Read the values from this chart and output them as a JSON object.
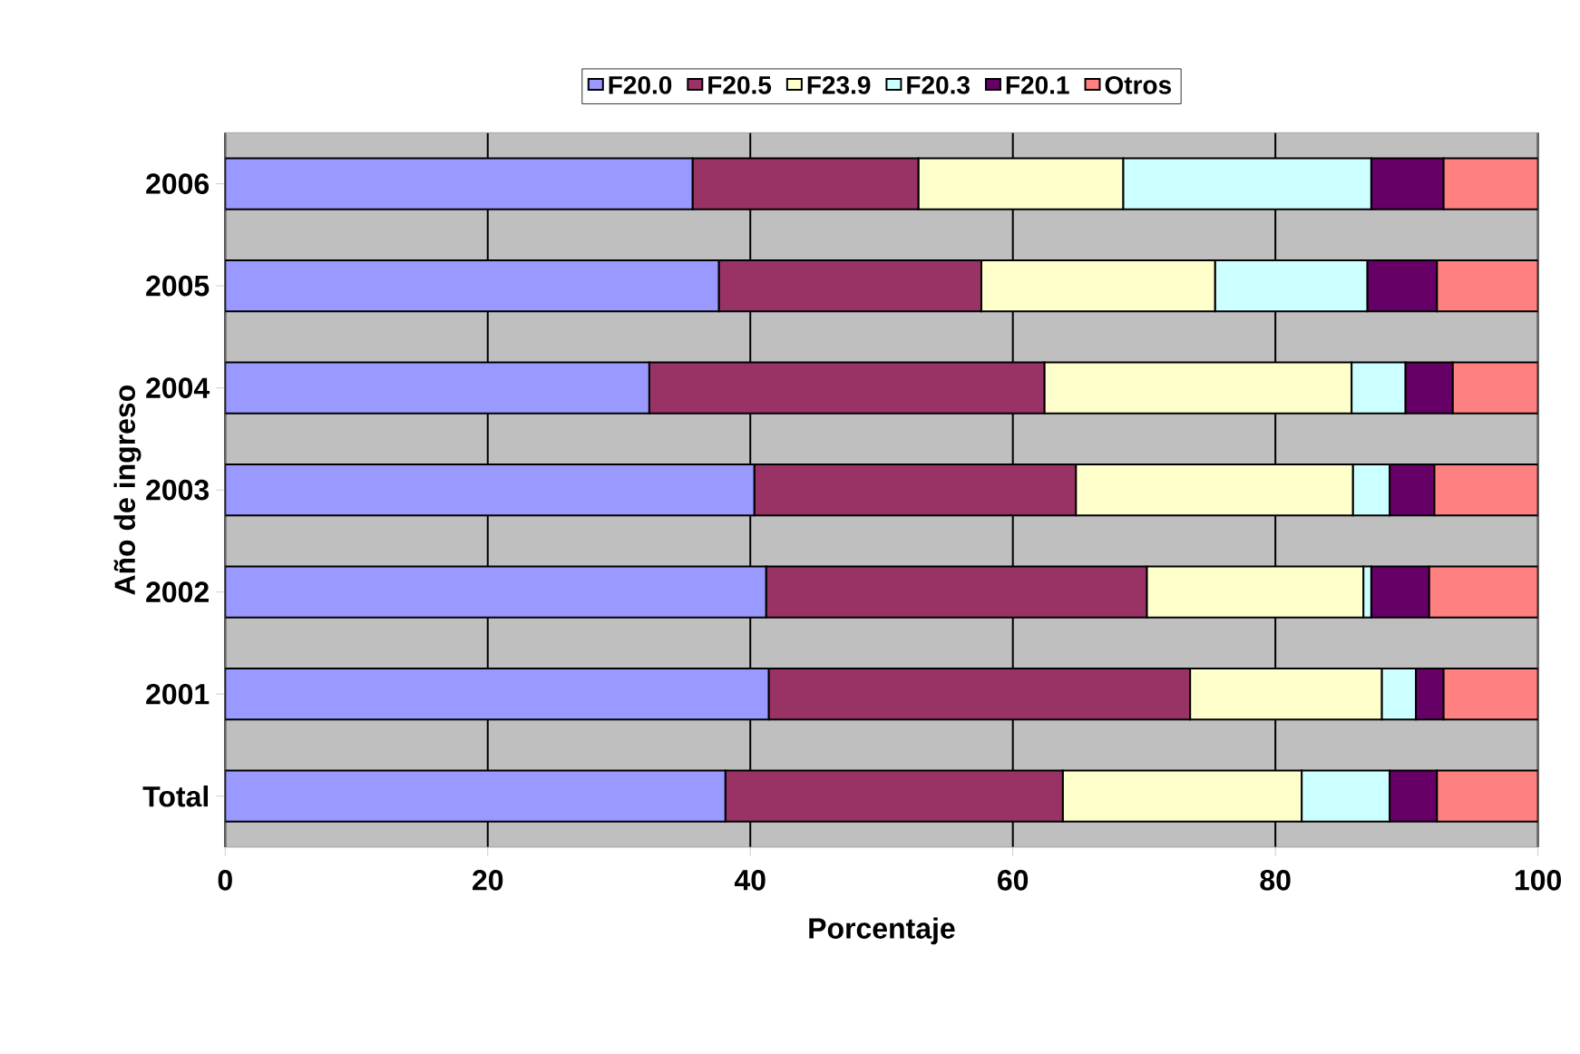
{
  "chart_data": {
    "type": "bar",
    "orientation": "horizontal",
    "stacked": true,
    "xlabel": "Porcentaje",
    "ylabel": "Año de ingreso",
    "categories": [
      "2006",
      "2005",
      "2004",
      "2003",
      "2002",
      "2001",
      "Total"
    ],
    "series": [
      {
        "name": "F20.0",
        "color": "#9999ff",
        "values": [
          35.6,
          37.6,
          32.3,
          40.3,
          41.2,
          41.4,
          38.1
        ]
      },
      {
        "name": "F20.5",
        "color": "#993366",
        "values": [
          17.2,
          20.0,
          30.1,
          24.5,
          29.0,
          32.1,
          25.7
        ]
      },
      {
        "name": "F23.9",
        "color": "#ffffcc",
        "values": [
          15.6,
          17.8,
          23.4,
          21.1,
          16.5,
          14.6,
          18.2
        ]
      },
      {
        "name": "F20.3",
        "color": "#ccffff",
        "values": [
          18.9,
          11.6,
          4.1,
          2.8,
          0.6,
          2.6,
          6.7
        ]
      },
      {
        "name": "F20.1",
        "color": "#660066",
        "values": [
          5.5,
          5.3,
          3.6,
          3.4,
          4.4,
          2.1,
          3.6
        ]
      },
      {
        "name": "Otros",
        "color": "#ff8080",
        "values": [
          7.2,
          7.7,
          6.5,
          7.9,
          8.3,
          7.2,
          7.7
        ]
      }
    ],
    "xlim": [
      0,
      100
    ],
    "xticks": [
      0,
      20,
      40,
      60,
      80,
      100
    ],
    "grid": "x",
    "legend": "top"
  }
}
